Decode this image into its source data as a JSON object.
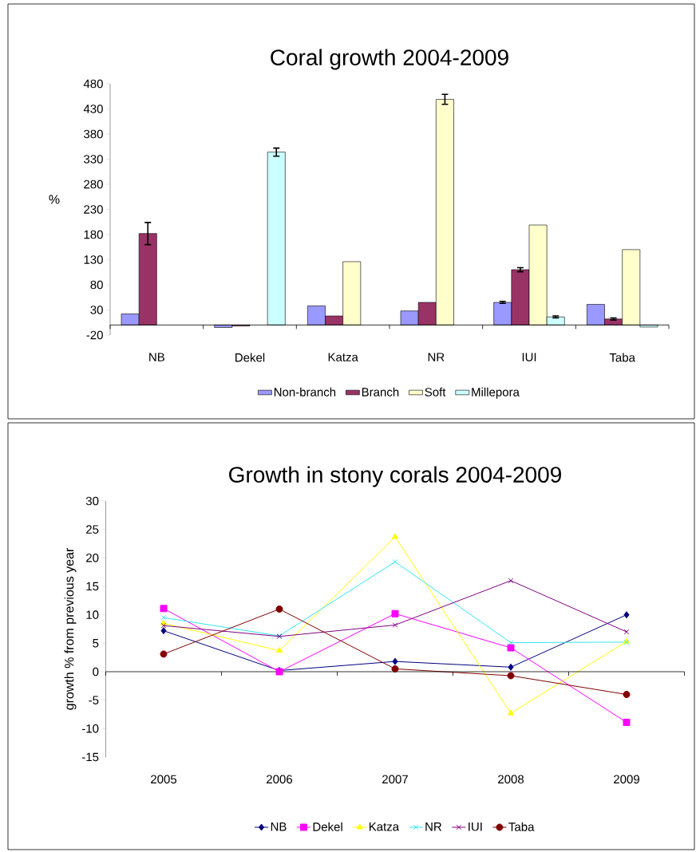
{
  "chart_data": [
    {
      "type": "bar",
      "title": "Coral growth 2004-2009",
      "ylabel": "%",
      "categories": [
        "NB",
        "Dekel",
        "Katza",
        "NR",
        "IUI",
        "Taba"
      ],
      "series": [
        {
          "name": "Non-branch",
          "color": "#9999ff",
          "values": [
            22,
            -5,
            38,
            28,
            45,
            41
          ],
          "errors": [
            null,
            null,
            null,
            null,
            2,
            null
          ]
        },
        {
          "name": "Branch",
          "color": "#993366",
          "values": [
            182,
            -2,
            18,
            45,
            110,
            12
          ],
          "errors": [
            22,
            null,
            null,
            null,
            4,
            2
          ]
        },
        {
          "name": "Soft",
          "color": "#ffffcc",
          "values": [
            null,
            null,
            126,
            449,
            199,
            150
          ],
          "errors": [
            null,
            null,
            null,
            10,
            null,
            null
          ]
        },
        {
          "name": "Millepora",
          "color": "#ccffff",
          "values": [
            null,
            344,
            null,
            null,
            16,
            -4
          ],
          "errors": [
            null,
            8,
            null,
            null,
            2,
            null
          ]
        }
      ],
      "ylim": [
        -20,
        480
      ],
      "yticks": [
        -20,
        30,
        80,
        130,
        180,
        230,
        280,
        330,
        380,
        430,
        480
      ],
      "legend": "bottom"
    },
    {
      "type": "line",
      "title": "Growth in stony corals 2004-2009",
      "ylabel": "growth % from previous year",
      "categories": [
        "2005",
        "2006",
        "2007",
        "2008",
        "2009"
      ],
      "series": [
        {
          "name": "NB",
          "color": "#000080",
          "marker": "diamond",
          "values": [
            7.2,
            0.2,
            1.8,
            0.8,
            10.0
          ]
        },
        {
          "name": "Dekel",
          "color": "#ff00ff",
          "marker": "square",
          "values": [
            11.1,
            0.0,
            10.2,
            4.2,
            -8.9
          ]
        },
        {
          "name": "Katza",
          "color": "#ffff00",
          "marker": "triangle",
          "values": [
            8.5,
            3.7,
            23.7,
            -7.3,
            5.3
          ]
        },
        {
          "name": "NR",
          "color": "#33e6f0",
          "marker": "cross",
          "values": [
            9.5,
            6.3,
            19.3,
            5.1,
            5.2
          ]
        },
        {
          "name": "IUI",
          "color": "#800080",
          "marker": "cross",
          "values": [
            8.1,
            6.2,
            8.2,
            16.0,
            7.0
          ]
        },
        {
          "name": "Taba",
          "color": "#800000",
          "marker": "circle",
          "values": [
            3.1,
            11.0,
            0.5,
            -0.7,
            -4.0
          ]
        }
      ],
      "ylim": [
        -15,
        30
      ],
      "yticks": [
        -15,
        -10,
        -5,
        0,
        5,
        10,
        15,
        20,
        25,
        30
      ],
      "legend": "bottom"
    }
  ]
}
